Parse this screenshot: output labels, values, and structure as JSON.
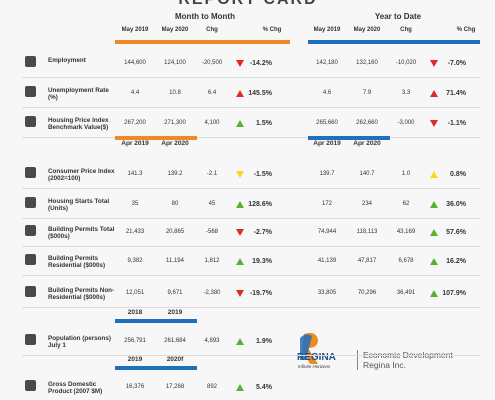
{
  "header": {
    "title": "REPORT CARD",
    "month_title": "Month to Month",
    "ytd_title": "Year to Date",
    "month_columns": [
      "May 2019",
      "May 2020",
      "Chg",
      "% Chg"
    ],
    "ytd_columns": [
      "May 2019",
      "May 2020",
      "Chg",
      "% Chg"
    ]
  },
  "rows": [
    {
      "label": "Employment",
      "month": [
        "144,600",
        "124,100",
        "-20,500",
        "-14.2%"
      ],
      "month_arrow": {
        "dir": "down",
        "color": "#e02a2a"
      },
      "ytd": [
        "142,180",
        "132,160",
        "-10,020",
        "-7.0%"
      ],
      "ytd_arrow": {
        "dir": "down",
        "color": "#e02a2a"
      }
    },
    {
      "label": "Unemployment Rate (%)",
      "month": [
        "4.4",
        "10.8",
        "6.4",
        "145.5%"
      ],
      "month_arrow": {
        "dir": "up",
        "color": "#e02a2a"
      },
      "ytd": [
        "4.6",
        "7.9",
        "3.3",
        "71.4%"
      ],
      "ytd_arrow": {
        "dir": "up",
        "color": "#e02a2a"
      }
    },
    {
      "label": "Housing Price Index Benchmark Value($)",
      "month": [
        "267,200",
        "271,300",
        "4,100",
        "1.5%"
      ],
      "month_arrow": {
        "dir": "up",
        "color": "#5cb030"
      },
      "ytd": [
        "265,660",
        "262,660",
        "-3,000",
        "-1.1%"
      ],
      "ytd_arrow": {
        "dir": "down",
        "color": "#e02a2a"
      }
    },
    {
      "subheader": [
        "Apr 2019",
        "Apr 2020"
      ],
      "ytd_subheader": [
        "Apr 2019",
        "Apr 2020"
      ]
    },
    {
      "label": "Consumer Price Index (2002=100)",
      "month": [
        "141.3",
        "139.2",
        "-2.1",
        "-1.5%"
      ],
      "month_arrow": {
        "dir": "down",
        "color": "#f2dc1e"
      },
      "ytd": [
        "139.7",
        "140.7",
        "1.0",
        "0.8%"
      ],
      "ytd_arrow": {
        "dir": "up",
        "color": "#f2dc1e"
      }
    },
    {
      "label": "Housing Starts Total (Units)",
      "month": [
        "35",
        "80",
        "45",
        "128.6%"
      ],
      "month_arrow": {
        "dir": "up",
        "color": "#5cb030"
      },
      "ytd": [
        "172",
        "234",
        "62",
        "36.0%"
      ],
      "ytd_arrow": {
        "dir": "up",
        "color": "#5cb030"
      }
    },
    {
      "label": "Building Permits Total ($000s)",
      "month": [
        "21,433",
        "20,865",
        "-568",
        "-2.7%"
      ],
      "month_arrow": {
        "dir": "down",
        "color": "#e02a2a"
      },
      "ytd": [
        "74,944",
        "118,113",
        "43,169",
        "57.6%"
      ],
      "ytd_arrow": {
        "dir": "up",
        "color": "#5cb030"
      }
    },
    {
      "label": "Building Permits Residential ($000s)",
      "month": [
        "9,382",
        "11,194",
        "1,812",
        "19.3%"
      ],
      "month_arrow": {
        "dir": "up",
        "color": "#5cb030"
      },
      "ytd": [
        "41,139",
        "47,817",
        "6,678",
        "16.2%"
      ],
      "ytd_arrow": {
        "dir": "up",
        "color": "#5cb030"
      }
    },
    {
      "label": "Building Permits Non-Residential ($000s)",
      "month": [
        "12,051",
        "9,671",
        "-2,380",
        "-19.7%"
      ],
      "month_arrow": {
        "dir": "down",
        "color": "#e02a2a"
      },
      "ytd": [
        "33,805",
        "70,296",
        "36,491",
        "107.9%"
      ],
      "ytd_arrow": {
        "dir": "up",
        "color": "#5cb030"
      }
    },
    {
      "subheader": [
        "2018",
        "2019"
      ],
      "bar_color": "#1f6fc1"
    },
    {
      "label": "Population (persons) July 1",
      "month": [
        "256,791",
        "261,684",
        "4,893",
        "1.9%"
      ],
      "month_arrow": {
        "dir": "up",
        "color": "#5cb030"
      }
    },
    {
      "subheader": [
        "2019",
        "2020f"
      ],
      "bar_color": "#1f6fc1"
    },
    {
      "label": "Gross Domestic Product (2007 $M)",
      "month": [
        "16,376",
        "17,268",
        "892",
        "5.4%"
      ],
      "month_arrow": {
        "dir": "up",
        "color": "#5cb030"
      }
    }
  ],
  "logo": {
    "name": "REGINA",
    "tagline": "Infinite Horizons",
    "org": "Economic Development Regina Inc."
  }
}
